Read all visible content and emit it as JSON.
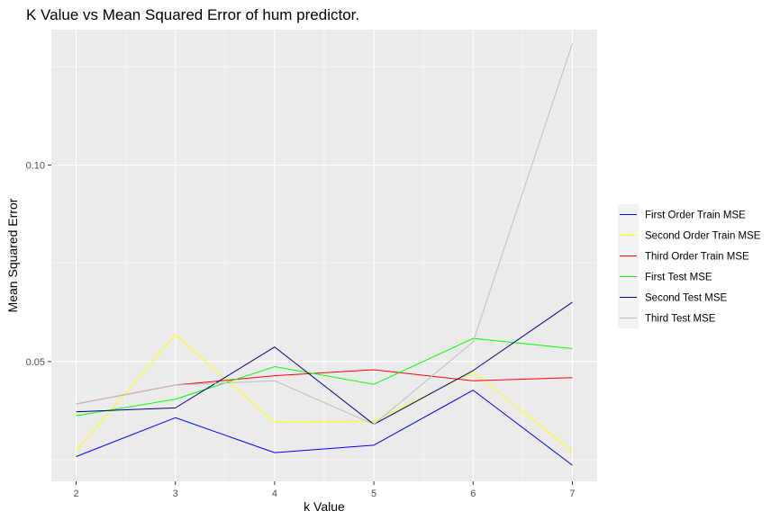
{
  "chart_data": {
    "type": "line",
    "title": "K Value vs Mean Squared Error of hum predictor.",
    "xlabel": "k Value",
    "ylabel": "Mean Squared Error",
    "x": [
      2,
      3,
      4,
      5,
      6,
      7
    ],
    "x_ticks": [
      "2",
      "3",
      "4",
      "5",
      "6",
      "7"
    ],
    "y_ticks": [
      {
        "value": 0.05,
        "label": "0.05"
      },
      {
        "value": 0.1,
        "label": "0.10"
      }
    ],
    "xlim": [
      1.75,
      7.25
    ],
    "ylim": [
      0.0195,
      0.1345
    ],
    "grid": true,
    "legend_position": "right",
    "series": [
      {
        "name": "First Order Train MSE",
        "color": "#0000ff",
        "values": [
          0.0258,
          0.0357,
          0.0268,
          0.0287,
          0.0427,
          0.0236
        ]
      },
      {
        "name": "Second Order Train MSE",
        "color": "#ffff00",
        "values": [
          0.0273,
          0.0568,
          0.0345,
          0.0348,
          0.0473,
          0.0271
        ]
      },
      {
        "name": "Third Order Train MSE",
        "color": "#ff0000",
        "values": [
          0.0392,
          0.044,
          0.0464,
          0.0479,
          0.0451,
          0.0459
        ]
      },
      {
        "name": "First Test MSE",
        "color": "#00ff00",
        "values": [
          0.0362,
          0.0404,
          0.0487,
          0.0442,
          0.0559,
          0.0533
        ]
      },
      {
        "name": "Second Test MSE",
        "color": "#000080",
        "values": [
          0.0372,
          0.0382,
          0.0537,
          0.034,
          0.0477,
          0.0651
        ]
      },
      {
        "name": "Third Test MSE",
        "color": "#bebebe",
        "values": [
          0.0392,
          0.044,
          0.0451,
          0.034,
          0.055,
          0.131
        ]
      }
    ]
  }
}
